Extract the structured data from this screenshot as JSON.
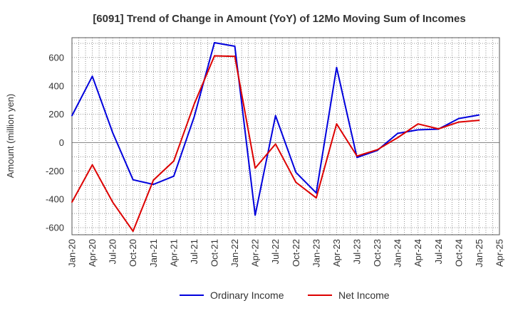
{
  "chart_data": {
    "type": "line",
    "title": "[6091]  Trend of Change in Amount (YoY) of 12Mo Moving Sum of Incomes",
    "ylabel": "Amount (million yen)",
    "xlabel": "",
    "ylim": [
      -650,
      740
    ],
    "yticks": [
      -600,
      -400,
      -200,
      0,
      200,
      400,
      600
    ],
    "x_tick_labels": [
      "Jan-20",
      "Apr-20",
      "Jul-20",
      "Oct-20",
      "Jan-21",
      "Apr-21",
      "Jul-21",
      "Oct-21",
      "Jan-22",
      "Apr-22",
      "Jul-22",
      "Oct-22",
      "Jan-23",
      "Apr-23",
      "Jul-23",
      "Oct-23",
      "Jan-24",
      "Apr-24",
      "Jul-24",
      "Oct-24",
      "Jan-25",
      "Apr-25"
    ],
    "grid": true,
    "legend_position": "bottom",
    "series": [
      {
        "name": "Ordinary Income",
        "color": "#0000dd",
        "values": [
          190,
          468,
          70,
          -262,
          -295,
          -237,
          180,
          705,
          680,
          -512,
          190,
          -210,
          -355,
          530,
          -105,
          -55,
          65,
          90,
          95,
          170,
          195
        ]
      },
      {
        "name": "Net Income",
        "color": "#dd0000",
        "values": [
          -420,
          -157,
          -420,
          -625,
          -265,
          -130,
          270,
          612,
          608,
          -180,
          -10,
          -280,
          -390,
          132,
          -95,
          -50,
          35,
          132,
          97,
          145,
          157
        ]
      }
    ]
  }
}
